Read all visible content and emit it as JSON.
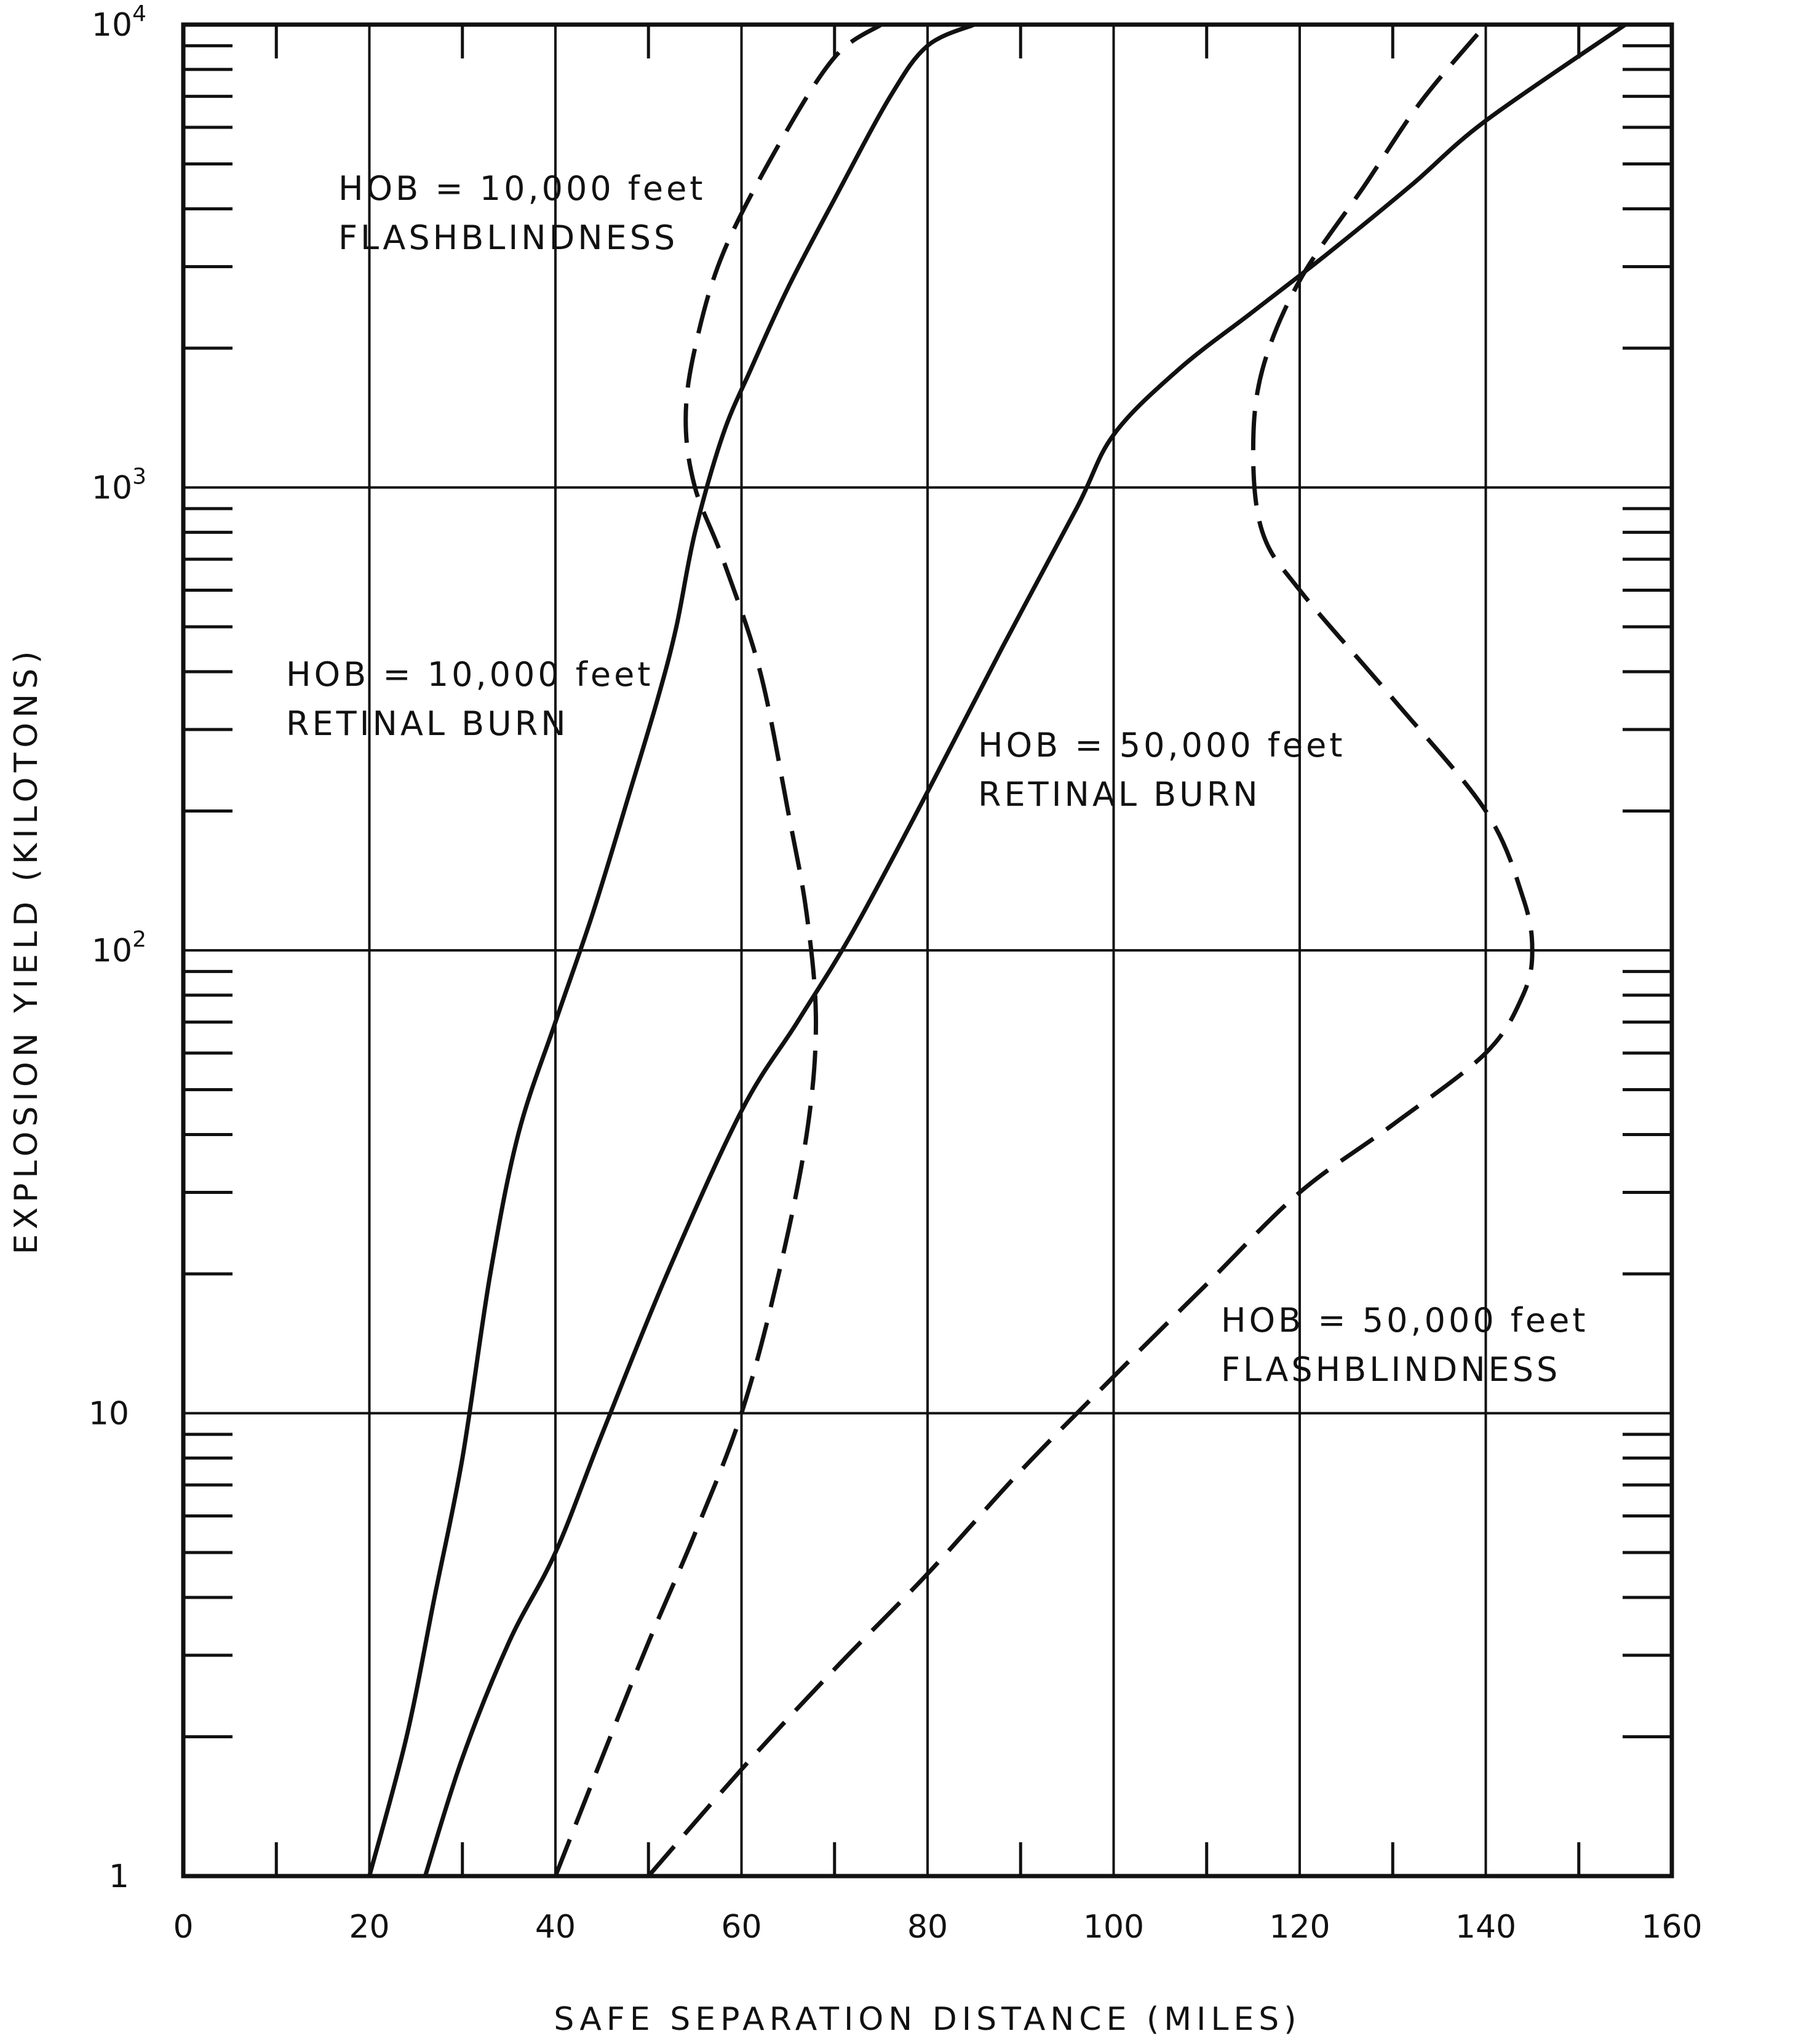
{
  "chart_data": {
    "type": "line",
    "title": "",
    "xlabel": "SAFE SEPARATION DISTANCE (MILES)",
    "ylabel": "EXPLOSION YIELD (KILOTONS)",
    "xlim": [
      0,
      160
    ],
    "ylim": [
      1,
      10000
    ],
    "yscale": "log",
    "grid": true,
    "x_ticks": [
      0,
      20,
      40,
      60,
      80,
      100,
      120,
      140,
      160
    ],
    "x_tick_labels": [
      "0",
      "20",
      "40",
      "60",
      "80",
      "100",
      "120",
      "140",
      "160"
    ],
    "y_ticks": [
      1,
      10,
      100,
      1000,
      10000
    ],
    "y_tick_labels": [
      {
        "base": "1",
        "exp": ""
      },
      {
        "base": "10",
        "exp": ""
      },
      {
        "base": "10",
        "exp": "2"
      },
      {
        "base": "10",
        "exp": "3"
      },
      {
        "base": "10",
        "exp": "4"
      }
    ],
    "series": [
      {
        "id": "s1",
        "style": "solid",
        "x": [
          20,
          24,
          27,
          30,
          33,
          36,
          40,
          44,
          48,
          51,
          53,
          55,
          58,
          61,
          65,
          70,
          76,
          80,
          85
        ],
        "y": [
          1,
          2,
          4,
          8,
          20,
          40,
          70,
          120,
          220,
          350,
          500,
          800,
          1300,
          1800,
          2700,
          4200,
          7000,
          9000,
          10000
        ]
      },
      {
        "id": "s2",
        "style": "dashed",
        "x": [
          40,
          45,
          50,
          55,
          60,
          64,
          67,
          68,
          67,
          65,
          62,
          58,
          55,
          54,
          55,
          58,
          64,
          70,
          75
        ],
        "y": [
          1,
          1.8,
          3.2,
          5.5,
          10,
          20,
          40,
          70,
          120,
          200,
          400,
          700,
          1000,
          1400,
          2000,
          3200,
          5500,
          8500,
          10000
        ]
      },
      {
        "id": "s3",
        "style": "solid",
        "x": [
          26,
          30,
          35,
          40,
          45,
          52,
          60,
          66,
          72,
          80,
          88,
          96,
          100,
          107,
          115,
          123,
          132,
          140,
          155
        ],
        "y": [
          1,
          1.8,
          3.2,
          5,
          9,
          20,
          45,
          70,
          110,
          220,
          450,
          900,
          1300,
          1800,
          2400,
          3200,
          4500,
          6200,
          10000
        ]
      },
      {
        "id": "s4",
        "style": "dashed",
        "x": [
          50,
          60,
          70,
          80,
          90,
          100,
          110,
          120,
          130,
          140,
          144,
          145,
          144,
          140,
          130,
          120,
          116,
          115,
          116,
          120,
          127,
          133,
          140
        ],
        "y": [
          1,
          1.7,
          2.8,
          4.5,
          7.5,
          12,
          19,
          30,
          42,
          60,
          80,
          100,
          130,
          200,
          350,
          600,
          800,
          1200,
          1800,
          2800,
          4500,
          6800,
          10000
        ]
      }
    ],
    "annotations": [
      {
        "id": "flash-10k",
        "lines": [
          "HOB = 10,000 feet",
          "FLASHBLINDNESS"
        ]
      },
      {
        "id": "retinal-10k",
        "lines": [
          "HOB = 10,000 feet",
          "RETINAL BURN"
        ]
      },
      {
        "id": "retinal-50k",
        "lines": [
          "HOB = 50,000 feet",
          "RETINAL BURN"
        ]
      },
      {
        "id": "flash-50k",
        "lines": [
          "HOB = 50,000 feet",
          "FLASHBLINDNESS"
        ]
      }
    ]
  }
}
